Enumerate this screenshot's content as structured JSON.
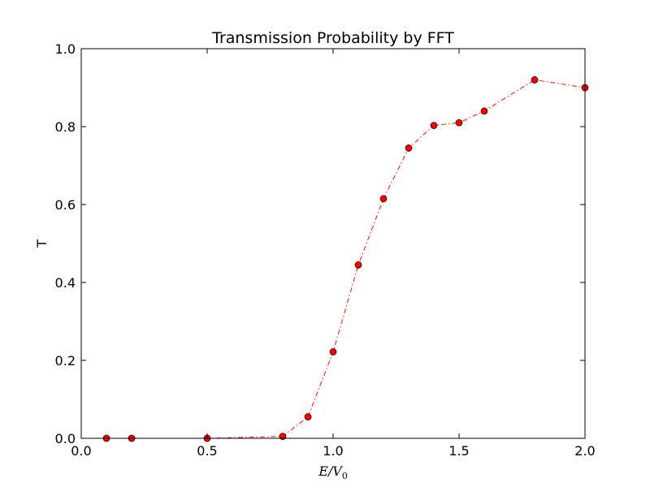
{
  "chart_data": {
    "type": "line",
    "title": "Transmission Probability by FFT",
    "xlabel": {
      "main": "E/V",
      "sub": "0"
    },
    "ylabel": "T",
    "xlim": [
      0.0,
      2.0
    ],
    "ylim": [
      0.0,
      1.0
    ],
    "xticks": [
      0.0,
      0.5,
      1.0,
      1.5,
      2.0
    ],
    "xtick_labels": [
      "0.0",
      "0.5",
      "1.0",
      "1.5",
      "2.0"
    ],
    "yticks": [
      0.0,
      0.2,
      0.4,
      0.6,
      0.8,
      1.0
    ],
    "ytick_labels": [
      "0.0",
      "0.2",
      "0.4",
      "0.6",
      "0.8",
      "1.0"
    ],
    "grid": false,
    "series": [
      {
        "line_style": "dash-dot",
        "marker": "circle",
        "color": "#ff0000",
        "x": [
          0.1,
          0.2,
          0.5,
          0.8,
          0.9,
          1.0,
          1.1,
          1.2,
          1.3,
          1.4,
          1.5,
          1.6,
          1.8,
          2.0
        ],
        "y": [
          0.0,
          0.0,
          0.0,
          0.005,
          0.055,
          0.222,
          0.445,
          0.615,
          0.745,
          0.803,
          0.81,
          0.84,
          0.92,
          0.9
        ]
      }
    ]
  }
}
